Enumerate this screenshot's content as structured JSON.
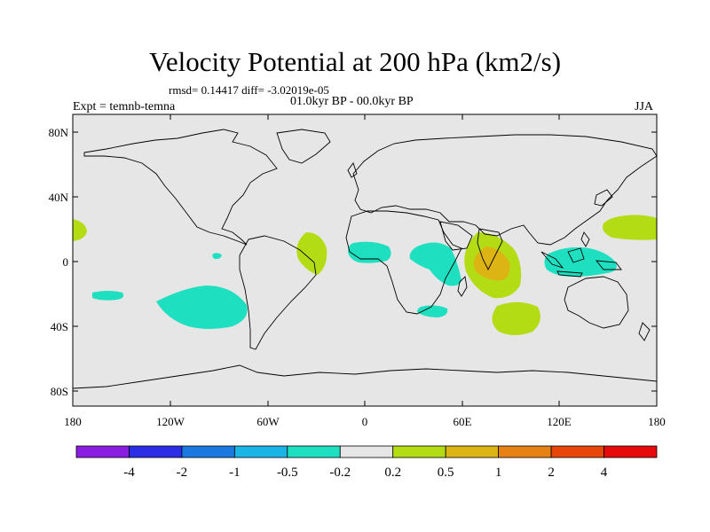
{
  "title": "Velocity Potential at 200 hPa (km2/s)",
  "stats": "rmsd= 0.14417  diff= -3.02019e-05",
  "period": "01.0kyr BP - 00.0kyr BP",
  "experiment": "Expt = temnb-temna",
  "season": "JJA",
  "map": {
    "lat_labels": [
      "80N",
      "40N",
      "0",
      "40S",
      "80S"
    ],
    "lon_labels": [
      "180",
      "120W",
      "60W",
      "0",
      "60E",
      "120E",
      "180"
    ],
    "background_color": "#e6e6e6"
  },
  "colorbar": {
    "labels": [
      "-4",
      "-2",
      "-1",
      "-0.5",
      "-0.2",
      "0.2",
      "0.5",
      "1",
      "2",
      "4"
    ],
    "colors": [
      "#8a1ee0",
      "#2c2ee6",
      "#1a78e0",
      "#1ab4e6",
      "#1ee0c0",
      "#e6e6e6",
      "#b4dc14",
      "#dcb414",
      "#e68214",
      "#e6460a",
      "#e60a0a"
    ]
  }
}
